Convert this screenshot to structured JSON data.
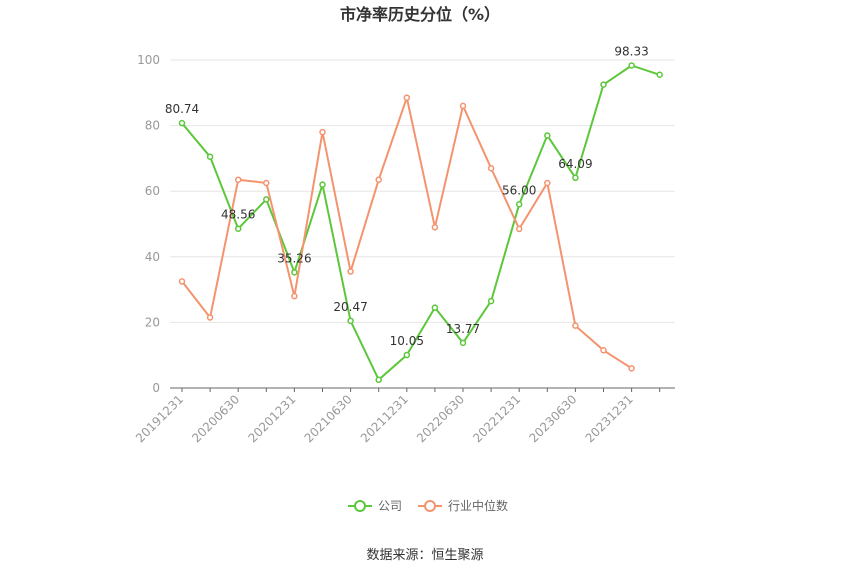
{
  "chart_data": {
    "type": "line",
    "title": "市净率历史分位（%）",
    "x": [
      "20191231",
      "20200331",
      "20200630",
      "20200930",
      "20201231",
      "20210331",
      "20210630",
      "20210930",
      "20211231",
      "20220331",
      "20220630",
      "20220930",
      "20221231",
      "20230331",
      "20230630",
      "20230930",
      "20231231",
      "20240331"
    ],
    "x_tick_labels": [
      "20191231",
      "20200630",
      "20201231",
      "20210630",
      "20211231",
      "20220630",
      "20221231",
      "20230630",
      "20231231"
    ],
    "ylim": [
      0,
      100
    ],
    "y_ticks": [
      0,
      20,
      40,
      60,
      80,
      100
    ],
    "grid": true,
    "legend_position": "bottom",
    "series": [
      {
        "name": "公司",
        "color": "#5cc73a",
        "values": [
          80.74,
          70.5,
          48.56,
          57.5,
          35.26,
          62.0,
          20.47,
          2.5,
          10.05,
          24.5,
          13.77,
          26.5,
          56.0,
          77.0,
          64.09,
          92.5,
          98.33,
          95.5
        ],
        "data_labels": {
          "0": "80.74",
          "2": "48.56",
          "4": "35.26",
          "6": "20.47",
          "8": "10.05",
          "10": "13.77",
          "12": "56.00",
          "14": "64.09",
          "16": "98.33"
        }
      },
      {
        "name": "行业中位数",
        "color": "#f4946f",
        "values": [
          32.5,
          21.5,
          63.5,
          62.5,
          28.0,
          78.0,
          35.5,
          63.5,
          88.5,
          49.0,
          86.0,
          67.0,
          48.5,
          62.5,
          19.0,
          11.5,
          6.0,
          null
        ]
      }
    ]
  },
  "source_text": "数据来源：恒生聚源"
}
